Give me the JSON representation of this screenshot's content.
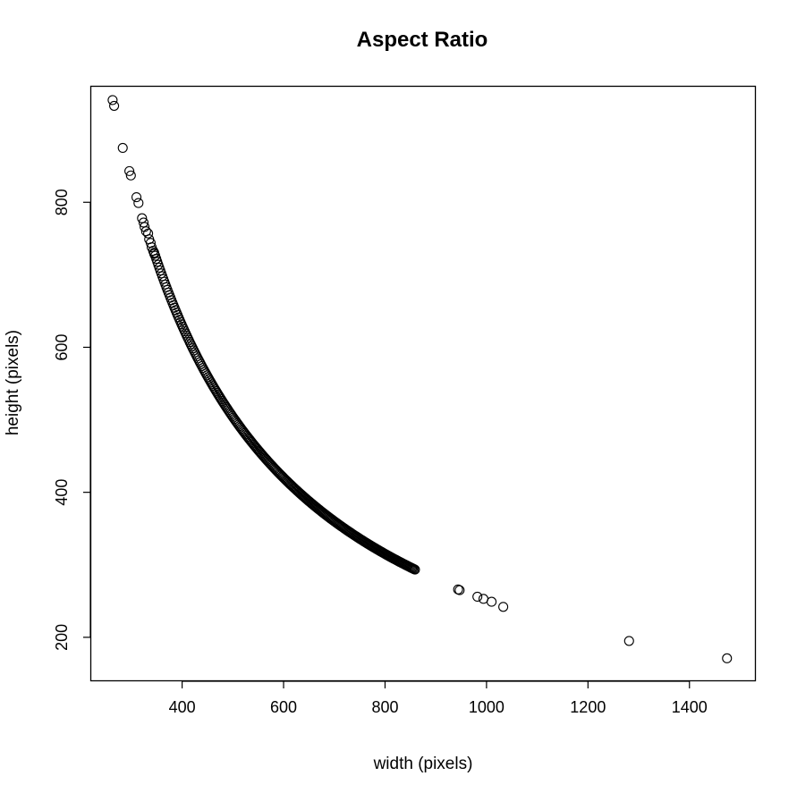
{
  "chart_data": {
    "type": "scatter",
    "title": "Aspect Ratio",
    "xlabel": "width (pixels)",
    "ylabel": "height (pixels)",
    "xlim": [
      220,
      1530
    ],
    "ylim": [
      140,
      960
    ],
    "xticks": [
      400,
      600,
      800,
      1000,
      1200,
      1400
    ],
    "yticks": [
      200,
      400,
      600,
      800
    ],
    "grid": false,
    "legend": "none",
    "marker": "open-circle",
    "curve_constant": 252000,
    "curve_x_range": [
      345,
      860
    ],
    "points": [
      {
        "x": 263,
        "y": 941
      },
      {
        "x": 266,
        "y": 933
      },
      {
        "x": 283,
        "y": 875
      },
      {
        "x": 296,
        "y": 843
      },
      {
        "x": 299,
        "y": 837
      },
      {
        "x": 310,
        "y": 807
      },
      {
        "x": 314,
        "y": 799
      },
      {
        "x": 321,
        "y": 778
      },
      {
        "x": 324,
        "y": 772
      },
      {
        "x": 326,
        "y": 766
      },
      {
        "x": 329,
        "y": 760
      },
      {
        "x": 333,
        "y": 757
      },
      {
        "x": 335,
        "y": 749
      },
      {
        "x": 338,
        "y": 744
      },
      {
        "x": 340,
        "y": 738
      },
      {
        "x": 343,
        "y": 733
      },
      {
        "x": 345,
        "y": 729
      },
      {
        "x": 947,
        "y": 265
      },
      {
        "x": 944,
        "y": 266
      },
      {
        "x": 982,
        "y": 256
      },
      {
        "x": 994,
        "y": 253
      },
      {
        "x": 1010,
        "y": 249
      },
      {
        "x": 1033,
        "y": 242
      },
      {
        "x": 1281,
        "y": 195
      },
      {
        "x": 1474,
        "y": 171
      }
    ]
  }
}
